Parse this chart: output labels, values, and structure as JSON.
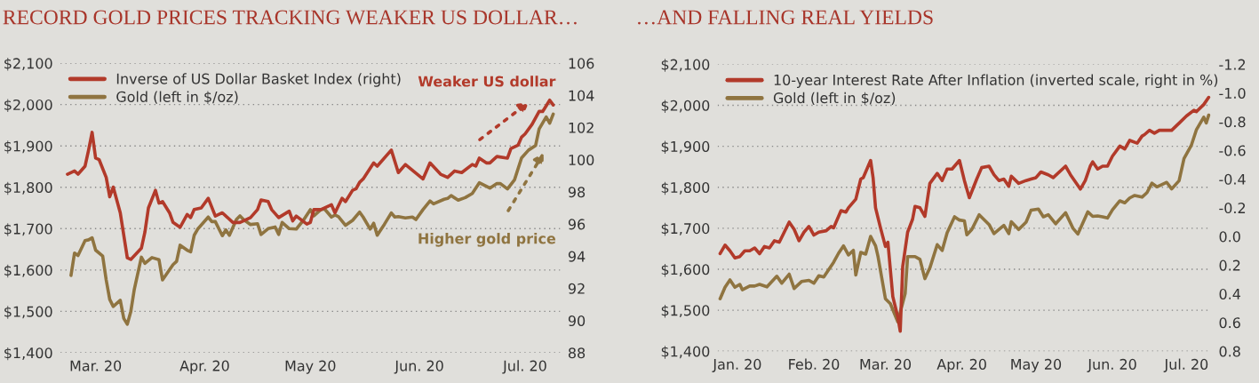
{
  "chart_data": [
    {
      "type": "line",
      "title": "RECORD GOLD PRICES TRACKING WEAKER US DOLLAR…",
      "xlim": [
        "2020-02-20",
        "2020-07-11"
      ],
      "xticks": [
        {
          "value": "2020-03-01",
          "label": "Mar. 20"
        },
        {
          "value": "2020-04-01",
          "label": "Apr. 20"
        },
        {
          "value": "2020-05-01",
          "label": "May 20"
        },
        {
          "value": "2020-06-01",
          "label": "Jun. 20"
        },
        {
          "value": "2020-07-01",
          "label": "Jul. 20"
        }
      ],
      "ylim": [
        1400,
        2100
      ],
      "yticks": [
        {
          "value": 1400,
          "label": "$1,400"
        },
        {
          "value": 1500,
          "label": "$1,500"
        },
        {
          "value": 1600,
          "label": "$1,600"
        },
        {
          "value": 1700,
          "label": "$1,700"
        },
        {
          "value": 1800,
          "label": "$1,800"
        },
        {
          "value": 1900,
          "label": "$1,900"
        },
        {
          "value": 2000,
          "label": "$2,000"
        },
        {
          "value": 2100,
          "label": "$2,100"
        }
      ],
      "y2lim": [
        88,
        106
      ],
      "y2ticks": [
        88,
        90,
        92,
        94,
        96,
        98,
        100,
        102,
        104,
        106
      ],
      "grid": "y",
      "legend": "top left",
      "series": [
        {
          "name": "Inverse of US Dollar Basket Index (right)",
          "color": "#b23a2a",
          "axis": "y2",
          "x": [
            "2020-02-22",
            "2020-02-24",
            "2020-02-25",
            "2020-02-27",
            "2020-02-28",
            "2020-02-29",
            "2020-03-01",
            "2020-03-02",
            "2020-03-04",
            "2020-03-05",
            "2020-03-06",
            "2020-03-08",
            "2020-03-10",
            "2020-03-11",
            "2020-03-14",
            "2020-03-15",
            "2020-03-16",
            "2020-03-18",
            "2020-03-19",
            "2020-03-20",
            "2020-03-22",
            "2020-03-23",
            "2020-03-25",
            "2020-03-27",
            "2020-03-28",
            "2020-03-29",
            "2020-03-31",
            "2020-04-02",
            "2020-04-04",
            "2020-04-06",
            "2020-04-09",
            "2020-04-11",
            "2020-04-14",
            "2020-04-16",
            "2020-04-17",
            "2020-04-19",
            "2020-04-20",
            "2020-04-22",
            "2020-04-25",
            "2020-04-26",
            "2020-04-27",
            "2020-04-30",
            "2020-05-01",
            "2020-05-02",
            "2020-05-04",
            "2020-05-07",
            "2020-05-08",
            "2020-05-10",
            "2020-05-11",
            "2020-05-13",
            "2020-05-14",
            "2020-05-15",
            "2020-05-16",
            "2020-05-19",
            "2020-05-20",
            "2020-05-24",
            "2020-05-26",
            "2020-05-28",
            "2020-06-02",
            "2020-06-04",
            "2020-06-07",
            "2020-06-09",
            "2020-06-11",
            "2020-06-13",
            "2020-06-16",
            "2020-06-17",
            "2020-06-18",
            "2020-06-20",
            "2020-06-21",
            "2020-06-23",
            "2020-06-26",
            "2020-06-27",
            "2020-06-29",
            "2020-06-30",
            "2020-07-01",
            "2020-07-03",
            "2020-07-05",
            "2020-07-06",
            "2020-07-08",
            "2020-07-09"
          ],
          "values": [
            99.1,
            99.3,
            99.1,
            99.6,
            100.6,
            101.7,
            100.1,
            100.0,
            98.9,
            97.7,
            98.3,
            96.7,
            93.9,
            93.8,
            94.5,
            95.5,
            97.0,
            98.1,
            97.3,
            97.4,
            96.7,
            96.1,
            95.8,
            96.6,
            96.4,
            96.9,
            97.0,
            97.6,
            96.5,
            96.7,
            96.1,
            96.1,
            96.4,
            96.9,
            97.5,
            97.4,
            96.9,
            96.4,
            96.8,
            96.2,
            96.5,
            96.0,
            96.1,
            96.9,
            96.9,
            97.2,
            96.7,
            97.6,
            97.4,
            98.1,
            98.2,
            98.6,
            98.8,
            99.8,
            99.6,
            100.6,
            99.2,
            99.7,
            98.8,
            99.8,
            99.1,
            98.9,
            99.3,
            99.2,
            99.7,
            99.6,
            100.1,
            99.8,
            99.8,
            100.2,
            100.1,
            100.7,
            100.9,
            101.4,
            101.6,
            102.2,
            103.0,
            103.0,
            103.7,
            103.4
          ]
        },
        {
          "name": "Gold (left in $/oz)",
          "color": "#8f7440",
          "axis": "y",
          "x": [
            "2020-02-23",
            "2020-02-24",
            "2020-02-25",
            "2020-02-27",
            "2020-02-28",
            "2020-02-29",
            "2020-03-01",
            "2020-03-03",
            "2020-03-04",
            "2020-03-05",
            "2020-03-06",
            "2020-03-08",
            "2020-03-09",
            "2020-03-10",
            "2020-03-11",
            "2020-03-12",
            "2020-03-14",
            "2020-03-15",
            "2020-03-17",
            "2020-03-19",
            "2020-03-20",
            "2020-03-23",
            "2020-03-24",
            "2020-03-25",
            "2020-03-27",
            "2020-03-28",
            "2020-03-29",
            "2020-03-30",
            "2020-04-02",
            "2020-04-03",
            "2020-04-04",
            "2020-04-06",
            "2020-04-07",
            "2020-04-08",
            "2020-04-10",
            "2020-04-11",
            "2020-04-12",
            "2020-04-14",
            "2020-04-16",
            "2020-04-17",
            "2020-04-19",
            "2020-04-21",
            "2020-04-22",
            "2020-04-23",
            "2020-04-25",
            "2020-04-27",
            "2020-04-29",
            "2020-05-01",
            "2020-05-02",
            "2020-05-04",
            "2020-05-05",
            "2020-05-07",
            "2020-05-08",
            "2020-05-09",
            "2020-05-11",
            "2020-05-13",
            "2020-05-15",
            "2020-05-16",
            "2020-05-18",
            "2020-05-19",
            "2020-05-20",
            "2020-05-22",
            "2020-05-24",
            "2020-05-25",
            "2020-05-26",
            "2020-05-28",
            "2020-05-30",
            "2020-05-31",
            "2020-06-02",
            "2020-06-04",
            "2020-06-05",
            "2020-06-08",
            "2020-06-09",
            "2020-06-10",
            "2020-06-12",
            "2020-06-14",
            "2020-06-16",
            "2020-06-18",
            "2020-06-21",
            "2020-06-23",
            "2020-06-24",
            "2020-06-26",
            "2020-06-28",
            "2020-06-30",
            "2020-07-02",
            "2020-07-04",
            "2020-07-05",
            "2020-07-07",
            "2020-07-08",
            "2020-07-09"
          ],
          "values": [
            1587,
            1641,
            1635,
            1671,
            1673,
            1678,
            1648,
            1634,
            1576,
            1529,
            1512,
            1527,
            1483,
            1469,
            1500,
            1554,
            1631,
            1616,
            1630,
            1625,
            1576,
            1613,
            1621,
            1660,
            1648,
            1644,
            1684,
            1699,
            1728,
            1717,
            1717,
            1683,
            1697,
            1684,
            1722,
            1731,
            1722,
            1710,
            1712,
            1686,
            1700,
            1704,
            1686,
            1715,
            1700,
            1699,
            1720,
            1746,
            1731,
            1746,
            1748,
            1728,
            1733,
            1729,
            1708,
            1720,
            1740,
            1728,
            1699,
            1713,
            1684,
            1710,
            1738,
            1728,
            1729,
            1726,
            1728,
            1722,
            1746,
            1767,
            1760,
            1771,
            1773,
            1780,
            1769,
            1775,
            1785,
            1811,
            1798,
            1809,
            1809,
            1796,
            1818,
            1871,
            1890,
            1901,
            1941,
            1970,
            1955,
            1977
          ]
        }
      ],
      "annotations": [
        "Weaker US dollar",
        "Higher gold price"
      ]
    },
    {
      "type": "line",
      "title": "…AND FALLING REAL YIELDS",
      "xlim": [
        "2019-12-24",
        "2020-07-11"
      ],
      "xticks": [
        {
          "value": "2020-01-01",
          "label": "Jan. 20"
        },
        {
          "value": "2020-02-01",
          "label": "Feb. 20"
        },
        {
          "value": "2020-03-01",
          "label": "Mar. 20"
        },
        {
          "value": "2020-04-01",
          "label": "Apr. 20"
        },
        {
          "value": "2020-05-01",
          "label": "May 20"
        },
        {
          "value": "2020-06-01",
          "label": "Jun. 20"
        },
        {
          "value": "2020-07-01",
          "label": "Jul. 20"
        }
      ],
      "ylim": [
        1400,
        2100
      ],
      "yticks": [
        {
          "value": 1400,
          "label": "$1,400"
        },
        {
          "value": 1500,
          "label": "$1,500"
        },
        {
          "value": 1600,
          "label": "$1,600"
        },
        {
          "value": 1700,
          "label": "$1,700"
        },
        {
          "value": 1800,
          "label": "$1,800"
        },
        {
          "value": 1900,
          "label": "$1,900"
        },
        {
          "value": 2000,
          "label": "$2,000"
        },
        {
          "value": 2100,
          "label": "$2,100"
        }
      ],
      "y2lim": [
        0.8,
        -1.2
      ],
      "y2ticks": [
        {
          "value": -1.2,
          "label": "-1.2"
        },
        {
          "value": -1.0,
          "label": "-1.0"
        },
        {
          "value": -0.8,
          "label": "-0.8"
        },
        {
          "value": -0.6,
          "label": "-0.6"
        },
        {
          "value": -0.4,
          "label": "-0.4"
        },
        {
          "value": -0.2,
          "label": "-0.2"
        },
        {
          "value": 0.0,
          "label": "0.0"
        },
        {
          "value": 0.2,
          "label": "0.2"
        },
        {
          "value": 0.4,
          "label": "0.4"
        },
        {
          "value": 0.6,
          "label": "0.6"
        },
        {
          "value": 0.8,
          "label": "0.8"
        }
      ],
      "grid": "y",
      "legend": "top left",
      "series": [
        {
          "name": "10-year Interest Rate After Inflation (inverted scale, right in %)",
          "color": "#b23a2a",
          "axis": "y2",
          "x": [
            "2019-12-25",
            "2019-12-27",
            "2019-12-29",
            "2019-12-31",
            "2020-01-02",
            "2020-01-04",
            "2020-01-06",
            "2020-01-08",
            "2020-01-10",
            "2020-01-12",
            "2020-01-14",
            "2020-01-16",
            "2020-01-18",
            "2020-01-20",
            "2020-01-22",
            "2020-01-24",
            "2020-01-26",
            "2020-01-28",
            "2020-01-30",
            "2020-02-01",
            "2020-02-03",
            "2020-02-06",
            "2020-02-08",
            "2020-02-09",
            "2020-02-12",
            "2020-02-14",
            "2020-02-15",
            "2020-02-18",
            "2020-02-20",
            "2020-02-21",
            "2020-02-24",
            "2020-02-25",
            "2020-02-26",
            "2020-02-28",
            "2020-03-01",
            "2020-03-02",
            "2020-03-04",
            "2020-03-06",
            "2020-03-07",
            "2020-03-08",
            "2020-03-10",
            "2020-03-12",
            "2020-03-13",
            "2020-03-15",
            "2020-03-17",
            "2020-03-19",
            "2020-03-22",
            "2020-03-24",
            "2020-03-26",
            "2020-03-28",
            "2020-03-31",
            "2020-04-02",
            "2020-04-04",
            "2020-04-07",
            "2020-04-09",
            "2020-04-12",
            "2020-04-14",
            "2020-04-16",
            "2020-04-18",
            "2020-04-20",
            "2020-04-21",
            "2020-04-24",
            "2020-04-27",
            "2020-04-29",
            "2020-05-01",
            "2020-05-03",
            "2020-05-06",
            "2020-05-08",
            "2020-05-13",
            "2020-05-15",
            "2020-05-19",
            "2020-05-21",
            "2020-05-23",
            "2020-05-24",
            "2020-05-26",
            "2020-05-28",
            "2020-05-30",
            "2020-06-01",
            "2020-06-04",
            "2020-06-06",
            "2020-06-08",
            "2020-06-11",
            "2020-06-13",
            "2020-06-14",
            "2020-06-16",
            "2020-06-18",
            "2020-06-20",
            "2020-06-23",
            "2020-06-25",
            "2020-06-28",
            "2020-07-01",
            "2020-07-04",
            "2020-07-05",
            "2020-07-08",
            "2020-07-10"
          ],
          "values": [
            0.12,
            0.06,
            0.1,
            0.15,
            0.14,
            0.1,
            0.1,
            0.08,
            0.12,
            0.07,
            0.08,
            0.03,
            0.04,
            -0.03,
            -0.1,
            -0.05,
            0.03,
            -0.03,
            -0.07,
            -0.01,
            -0.03,
            -0.04,
            -0.07,
            -0.06,
            -0.18,
            -0.17,
            -0.2,
            -0.26,
            -0.4,
            -0.41,
            -0.53,
            -0.41,
            -0.2,
            -0.06,
            0.07,
            0.04,
            0.42,
            0.56,
            0.66,
            0.21,
            -0.03,
            -0.12,
            -0.21,
            -0.2,
            -0.14,
            -0.37,
            -0.44,
            -0.39,
            -0.47,
            -0.47,
            -0.53,
            -0.39,
            -0.27,
            -0.4,
            -0.48,
            -0.49,
            -0.43,
            -0.39,
            -0.4,
            -0.35,
            -0.42,
            -0.37,
            -0.39,
            -0.4,
            -0.41,
            -0.45,
            -0.43,
            -0.41,
            -0.49,
            -0.43,
            -0.33,
            -0.39,
            -0.49,
            -0.52,
            -0.47,
            -0.49,
            -0.49,
            -0.56,
            -0.63,
            -0.61,
            -0.67,
            -0.65,
            -0.7,
            -0.71,
            -0.74,
            -0.72,
            -0.74,
            -0.74,
            -0.74,
            -0.79,
            -0.84,
            -0.88,
            -0.87,
            -0.92,
            -0.97
          ]
        },
        {
          "name": "Gold (left in $/oz)",
          "color": "#8f7440",
          "axis": "y",
          "x": [
            "2019-12-25",
            "2019-12-27",
            "2019-12-29",
            "2019-12-31",
            "2020-01-02",
            "2020-01-03",
            "2020-01-06",
            "2020-01-08",
            "2020-01-10",
            "2020-01-13",
            "2020-01-15",
            "2020-01-17",
            "2020-01-19",
            "2020-01-22",
            "2020-01-24",
            "2020-01-27",
            "2020-01-30",
            "2020-02-01",
            "2020-02-03",
            "2020-02-05",
            "2020-02-07",
            "2020-02-09",
            "2020-02-11",
            "2020-02-13",
            "2020-02-15",
            "2020-02-17",
            "2020-02-18",
            "2020-02-20",
            "2020-02-22",
            "2020-02-24",
            "2020-02-26",
            "2020-02-27",
            "2020-03-01",
            "2020-03-03",
            "2020-03-06",
            "2020-03-09",
            "2020-03-10",
            "2020-03-13",
            "2020-03-15",
            "2020-03-17",
            "2020-03-19",
            "2020-03-22",
            "2020-03-24",
            "2020-03-26",
            "2020-03-29",
            "2020-03-31",
            "2020-04-02",
            "2020-04-03",
            "2020-04-05",
            "2020-04-08",
            "2020-04-11",
            "2020-04-12",
            "2020-04-14",
            "2020-04-17",
            "2020-04-18",
            "2020-04-20",
            "2020-04-21",
            "2020-04-24",
            "2020-04-27",
            "2020-04-29",
            "2020-05-02",
            "2020-05-04",
            "2020-05-06",
            "2020-05-09",
            "2020-05-13",
            "2020-05-16",
            "2020-05-18",
            "2020-05-22",
            "2020-05-24",
            "2020-05-26",
            "2020-05-28",
            "2020-05-30",
            "2020-06-01",
            "2020-06-04",
            "2020-06-06",
            "2020-06-08",
            "2020-06-10",
            "2020-06-13",
            "2020-06-15",
            "2020-06-17",
            "2020-06-19",
            "2020-06-23",
            "2020-06-25",
            "2020-06-28",
            "2020-06-30",
            "2020-07-03",
            "2020-07-05",
            "2020-07-08",
            "2020-07-09",
            "2020-07-10"
          ],
          "values": [
            1528,
            1556,
            1574,
            1556,
            1563,
            1550,
            1559,
            1559,
            1563,
            1557,
            1570,
            1583,
            1566,
            1588,
            1553,
            1570,
            1573,
            1566,
            1584,
            1581,
            1599,
            1617,
            1639,
            1657,
            1635,
            1646,
            1586,
            1641,
            1637,
            1680,
            1657,
            1631,
            1528,
            1516,
            1472,
            1541,
            1631,
            1631,
            1624,
            1577,
            1603,
            1660,
            1646,
            1689,
            1728,
            1720,
            1718,
            1684,
            1697,
            1733,
            1715,
            1709,
            1687,
            1702,
            1707,
            1687,
            1716,
            1697,
            1715,
            1744,
            1747,
            1728,
            1733,
            1711,
            1738,
            1700,
            1686,
            1740,
            1729,
            1730,
            1728,
            1725,
            1745,
            1767,
            1762,
            1774,
            1780,
            1776,
            1787,
            1810,
            1801,
            1812,
            1796,
            1816,
            1870,
            1903,
            1940,
            1971,
            1957,
            1976
          ]
        }
      ]
    }
  ]
}
